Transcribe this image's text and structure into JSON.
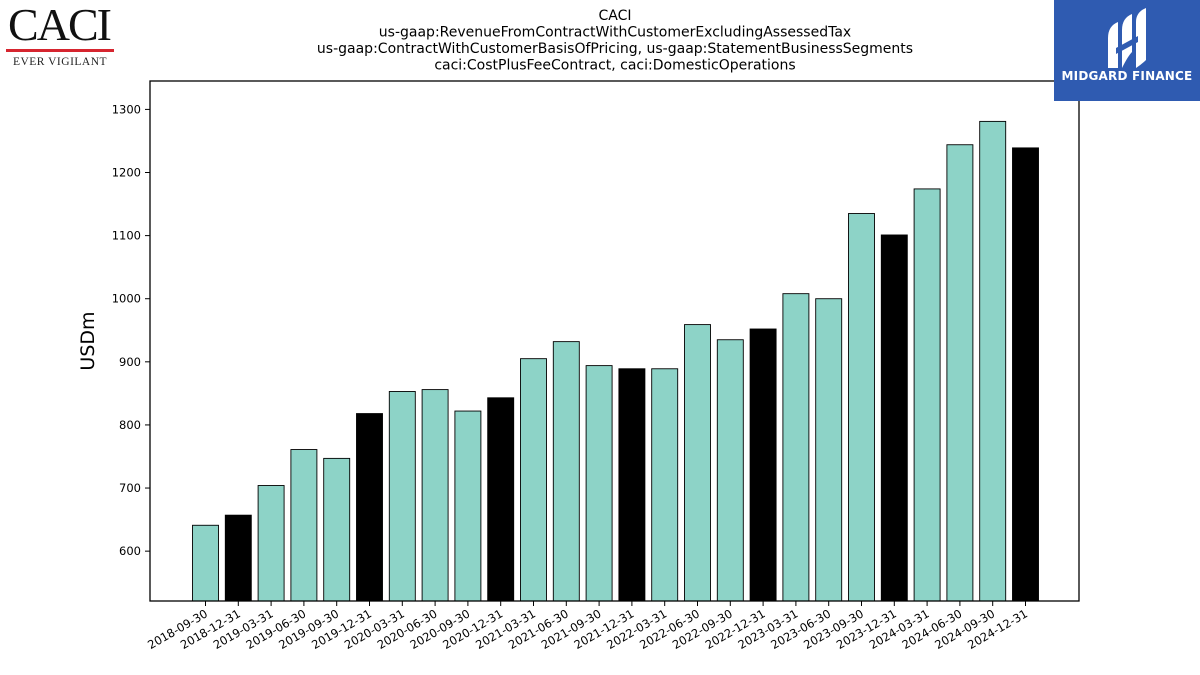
{
  "branding": {
    "left_logo": {
      "name": "CACI",
      "tagline": "EVER VIGILANT"
    },
    "right_logo": {
      "name": "MIDGARD FINANCE"
    }
  },
  "colors": {
    "regular_bar": "#8dd3c7",
    "highlight_bar": "#000000",
    "bar_edge": "#000000"
  },
  "chart_data": {
    "type": "bar",
    "title": [
      "CACI",
      "us-gaap:RevenueFromContractWithCustomerExcludingAssessedTax",
      "us-gaap:ContractWithCustomerBasisOfPricing, us-gaap:StatementBusinessSegments",
      "caci:CostPlusFeeContract, caci:DomesticOperations"
    ],
    "xlabel": "",
    "ylabel": "USDm",
    "ylim": [
      521,
      1345
    ],
    "yticks": [
      600,
      700,
      800,
      900,
      1000,
      1100,
      1200,
      1300
    ],
    "grid": false,
    "categories": [
      "2018-09-30",
      "2018-12-31",
      "2019-03-31",
      "2019-06-30",
      "2019-09-30",
      "2019-12-31",
      "2020-03-31",
      "2020-06-30",
      "2020-09-30",
      "2020-12-31",
      "2021-03-31",
      "2021-06-30",
      "2021-09-30",
      "2021-12-31",
      "2022-03-31",
      "2022-06-30",
      "2022-09-30",
      "2022-12-31",
      "2023-03-31",
      "2023-06-30",
      "2023-09-30",
      "2023-12-31",
      "2024-03-31",
      "2024-06-30",
      "2024-09-30",
      "2024-12-31"
    ],
    "values": [
      641,
      657,
      704,
      761,
      747,
      818,
      853,
      856,
      822,
      843,
      905,
      932,
      894,
      889,
      889,
      959,
      935,
      952,
      1008,
      1000,
      1135,
      1101,
      1174,
      1244,
      1281,
      1239
    ],
    "highlight": [
      false,
      true,
      false,
      false,
      false,
      true,
      false,
      false,
      false,
      true,
      false,
      false,
      false,
      true,
      false,
      false,
      false,
      true,
      false,
      false,
      false,
      true,
      false,
      false,
      false,
      true
    ]
  }
}
